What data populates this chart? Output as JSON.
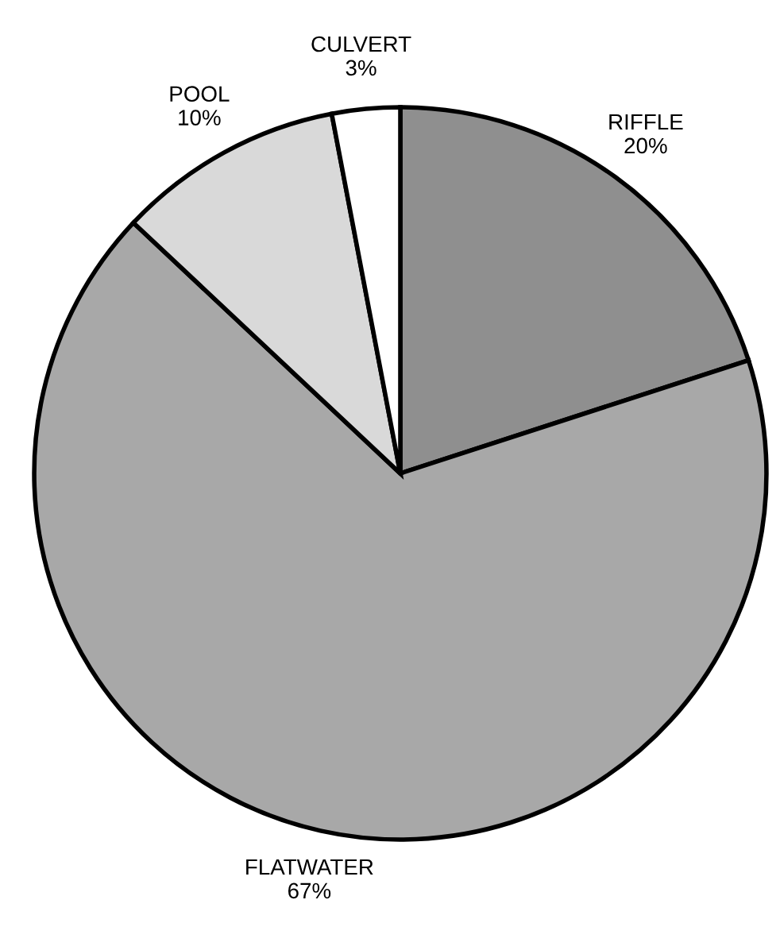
{
  "chart_data": {
    "type": "pie",
    "categories": [
      "RIFFLE",
      "FLATWATER",
      "POOL",
      "CULVERT"
    ],
    "values": [
      20,
      67,
      10,
      3
    ],
    "value_labels": [
      "20%",
      "67%",
      "10%",
      "3%"
    ],
    "colors": [
      "#8f8f8f",
      "#a8a8a8",
      "#d9d9d9",
      "#ffffff"
    ],
    "legend": false
  }
}
